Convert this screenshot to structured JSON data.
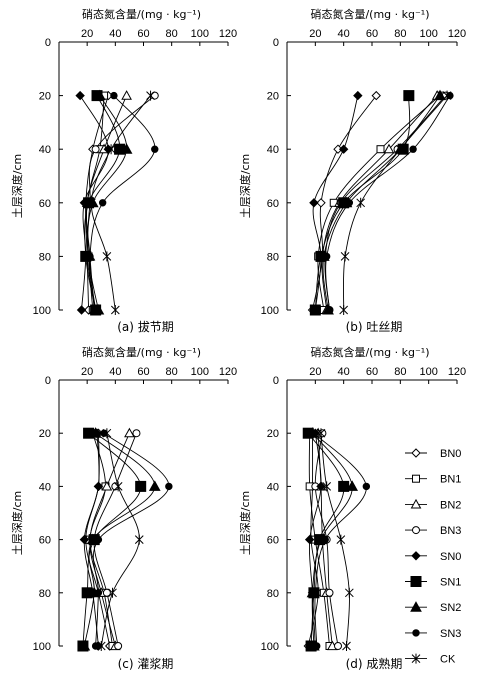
{
  "figure": {
    "x_axis_label": "硝态氮含量/(mg · kg⁻¹)",
    "y_axis_label": "土层深度/cm"
  },
  "legend": {
    "placement": "right-center of panel (d)",
    "entries": [
      "BN0",
      "BN1",
      "BN2",
      "BN3",
      "SN0",
      "SN1",
      "SN2",
      "SN3",
      "CK"
    ]
  },
  "chart_data": [
    {
      "type": "line",
      "caption": "(a) 拔节期",
      "x_ticks": [
        "20",
        "40",
        "60",
        "80",
        "100",
        "120"
      ],
      "y_ticks": [
        "0",
        "20",
        "40",
        "60",
        "80",
        "100"
      ],
      "xlim": [
        0,
        120
      ],
      "ylim": [
        0,
        100
      ],
      "y_inverted": true,
      "y": [
        20,
        40,
        60,
        80,
        100
      ],
      "series": [
        {
          "name": "BN0",
          "values": [
            35,
            24,
            19,
            20,
            21
          ]
        },
        {
          "name": "BN1",
          "values": [
            32,
            29,
            20,
            21,
            24
          ]
        },
        {
          "name": "BN2",
          "values": [
            48,
            32,
            20,
            22,
            25
          ]
        },
        {
          "name": "BN3",
          "values": [
            68,
            26,
            22,
            20,
            26
          ]
        },
        {
          "name": "SN0",
          "values": [
            15,
            35,
            18,
            19,
            16
          ]
        },
        {
          "name": "SN1",
          "values": [
            27,
            43,
            21,
            19,
            26
          ]
        },
        {
          "name": "SN2",
          "values": [
            29,
            48,
            24,
            21,
            28
          ]
        },
        {
          "name": "SN3",
          "values": [
            39,
            68,
            31,
            22,
            26
          ]
        },
        {
          "name": "CK",
          "values": [
            65,
            37,
            23,
            34,
            40
          ]
        }
      ]
    },
    {
      "type": "line",
      "caption": "(b) 吐丝期",
      "x_ticks": [
        "20",
        "40",
        "60",
        "80",
        "100",
        "120"
      ],
      "y_ticks": [
        "0",
        "20",
        "40",
        "60",
        "80",
        "100"
      ],
      "xlim": [
        0,
        120
      ],
      "ylim": [
        0,
        100
      ],
      "y_inverted": true,
      "y": [
        20,
        40,
        60,
        80,
        100
      ],
      "series": [
        {
          "name": "BN0",
          "values": [
            63,
            36,
            24,
            25,
            18
          ]
        },
        {
          "name": "BN1",
          "values": [
            108,
            66,
            33,
            22,
            26
          ]
        },
        {
          "name": "BN2",
          "values": [
            106,
            72,
            37,
            25,
            28
          ]
        },
        {
          "name": "BN3",
          "values": [
            112,
            78,
            38,
            27,
            30
          ]
        },
        {
          "name": "SN0",
          "values": [
            50,
            40,
            19,
            24,
            20
          ]
        },
        {
          "name": "SN1",
          "values": [
            86,
            82,
            40,
            24,
            20
          ]
        },
        {
          "name": "SN2",
          "values": [
            108,
            80,
            42,
            26,
            29
          ]
        },
        {
          "name": "SN3",
          "values": [
            115,
            89,
            44,
            28,
            30
          ]
        },
        {
          "name": "CK",
          "values": [
            113,
            80,
            52,
            41,
            40
          ]
        }
      ]
    },
    {
      "type": "line",
      "caption": "(c) 灌浆期",
      "x_ticks": [
        "20",
        "40",
        "60",
        "80",
        "100",
        "120"
      ],
      "y_ticks": [
        "0",
        "20",
        "40",
        "60",
        "80",
        "100"
      ],
      "xlim": [
        0,
        120
      ],
      "ylim": [
        0,
        100
      ],
      "y_inverted": true,
      "y": [
        20,
        40,
        60,
        80,
        100
      ],
      "series": [
        {
          "name": "BN0",
          "values": [
            28,
            28,
            19,
            28,
            36
          ]
        },
        {
          "name": "BN1",
          "values": [
            24,
            33,
            22,
            32,
            38
          ]
        },
        {
          "name": "BN2",
          "values": [
            50,
            34,
            22,
            30,
            40
          ]
        },
        {
          "name": "BN3",
          "values": [
            55,
            40,
            25,
            34,
            42
          ]
        },
        {
          "name": "SN0",
          "values": [
            27,
            28,
            18,
            24,
            28
          ]
        },
        {
          "name": "SN1",
          "values": [
            21,
            58,
            25,
            20,
            17
          ]
        },
        {
          "name": "SN2",
          "values": [
            26,
            68,
            24,
            25,
            18
          ]
        },
        {
          "name": "SN3",
          "values": [
            32,
            78,
            28,
            28,
            26
          ]
        },
        {
          "name": "CK",
          "values": [
            34,
            42,
            57,
            38,
            30
          ]
        }
      ]
    },
    {
      "type": "line",
      "caption": "(d) 成熟期",
      "x_ticks": [
        "20",
        "40",
        "60",
        "80",
        "100",
        "120"
      ],
      "y_ticks": [
        "0",
        "20",
        "40",
        "60",
        "80",
        "100"
      ],
      "xlim": [
        0,
        120
      ],
      "ylim": [
        0,
        100
      ],
      "y_inverted": true,
      "y": [
        20,
        40,
        60,
        80,
        100
      ],
      "series": [
        {
          "name": "BN0",
          "values": [
            18,
            18,
            17,
            22,
            15
          ]
        },
        {
          "name": "BN1",
          "values": [
            16,
            16,
            20,
            26,
            30
          ]
        },
        {
          "name": "BN2",
          "values": [
            22,
            24,
            25,
            28,
            32
          ]
        },
        {
          "name": "BN3",
          "values": [
            25,
            20,
            28,
            30,
            36
          ]
        },
        {
          "name": "SN0",
          "values": [
            20,
            24,
            16,
            18,
            20
          ]
        },
        {
          "name": "SN1",
          "values": [
            15,
            40,
            23,
            19,
            17
          ]
        },
        {
          "name": "SN2",
          "values": [
            18,
            46,
            24,
            18,
            19
          ]
        },
        {
          "name": "SN3",
          "values": [
            19,
            56,
            27,
            20,
            21
          ]
        },
        {
          "name": "CK",
          "values": [
            24,
            28,
            38,
            44,
            42
          ]
        }
      ]
    }
  ]
}
